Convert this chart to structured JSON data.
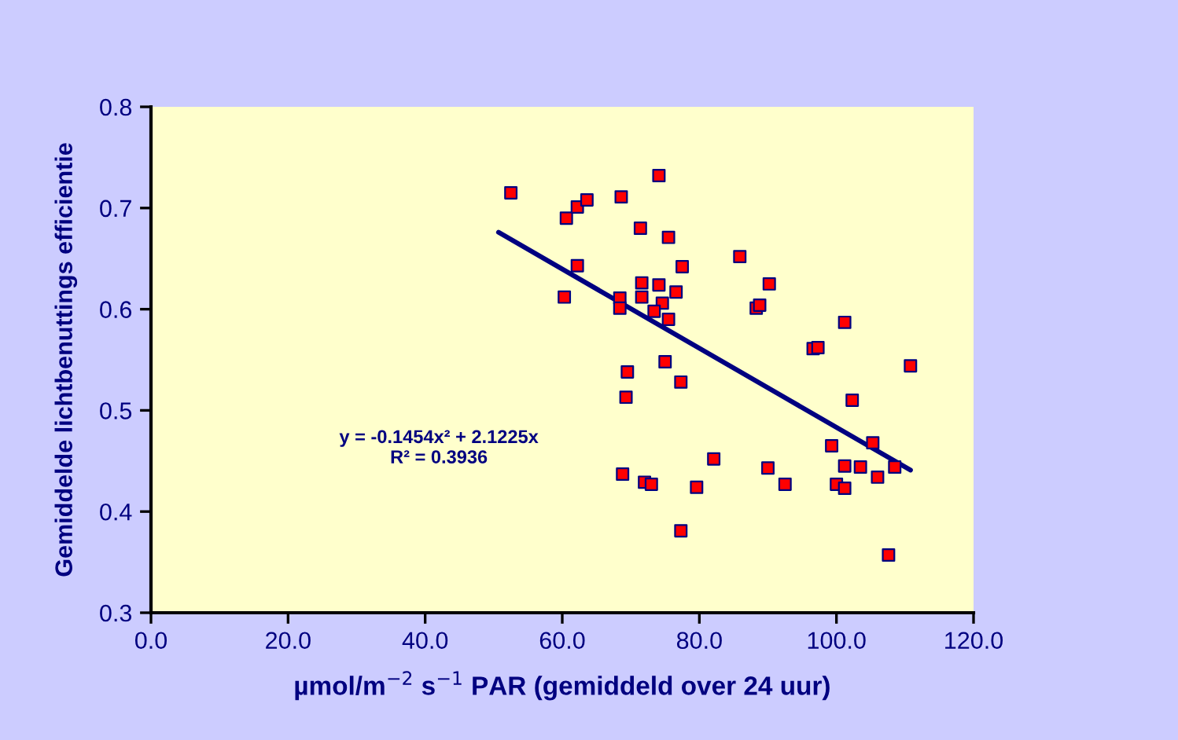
{
  "chart_data": {
    "type": "scatter",
    "xlabel": "µmol/m$^{−2}$ s$^{−1}$ PAR (gemiddeld over 24 uur)",
    "ylabel": "Gemiddelde lichtbenuttings efficientie",
    "x": [
      52.5,
      60.6,
      62.2,
      63.6,
      68.6,
      74.1,
      62.2,
      60.3,
      71.4,
      75.5,
      77.5,
      85.9,
      90.2,
      71.6,
      74.1,
      76.6,
      71.6,
      68.4,
      68.4,
      74.6,
      73.4,
      75.5,
      88.3,
      88.8,
      101.2,
      96.6,
      97.3,
      110.8,
      75.0,
      69.5,
      77.3,
      69.3,
      102.3,
      99.3,
      105.3,
      103.5,
      101.2,
      90.0,
      92.5,
      100.0,
      101.2,
      106.0,
      108.5,
      107.6,
      82.1,
      68.8,
      72.0,
      73.0,
      79.6,
      77.3
    ],
    "series": [
      {
        "color": "#ff0000",
        "marker": "square",
        "values": [
          0.715,
          0.69,
          0.701,
          0.708,
          0.711,
          0.732,
          0.643,
          0.612,
          0.68,
          0.671,
          0.642,
          0.652,
          0.625,
          0.626,
          0.624,
          0.617,
          0.612,
          0.611,
          0.601,
          0.606,
          0.598,
          0.59,
          0.601,
          0.604,
          0.587,
          0.561,
          0.562,
          0.544,
          0.548,
          0.538,
          0.528,
          0.513,
          0.51,
          0.465,
          0.468,
          0.444,
          0.445,
          0.443,
          0.427,
          0.427,
          0.423,
          0.434,
          0.444,
          0.357,
          0.452,
          0.437,
          0.429,
          0.427,
          0.424,
          0.381
        ]
      },
      {
        "type": "line",
        "color": "#000080",
        "x": [
          50.7,
          110.8
        ],
        "values": [
          0.676,
          0.441
        ],
        "line_style": "solid"
      }
    ],
    "annotations": [
      "y = -0.1454x² + 2.1225x",
      "R² = 0.3936"
    ],
    "xlim": [
      0,
      120
    ],
    "xticks": [
      {
        "value": 0,
        "label": "0.0"
      },
      {
        "value": 20,
        "label": "20.0"
      },
      {
        "value": 40,
        "label": "40.0"
      },
      {
        "value": 60,
        "label": "60.0"
      },
      {
        "value": 80,
        "label": "80.0"
      },
      {
        "value": 100,
        "label": "100.0"
      },
      {
        "value": 120,
        "label": "120.0"
      }
    ],
    "ylim": [
      0.3,
      0.8
    ],
    "yticks": [
      0.3,
      0.4,
      0.5,
      0.6,
      0.7,
      0.8
    ],
    "grid": false,
    "legend": false
  }
}
